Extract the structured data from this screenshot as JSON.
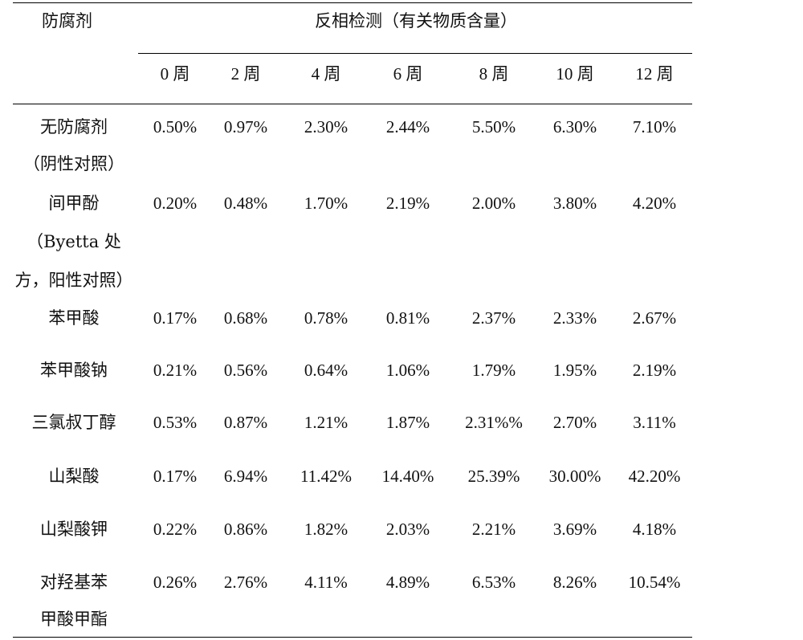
{
  "table": {
    "header": {
      "preservative": "防腐剂",
      "group": "反相检测（有关物质含量）",
      "weeks": [
        "0 周",
        "2 周",
        "4 周",
        "6 周",
        "8 周",
        "10 周",
        "12 周"
      ]
    },
    "rows": [
      {
        "name_lines": [
          "无防腐剂",
          "（阴性对照）"
        ],
        "values": [
          "0.50%",
          "0.97%",
          "2.30%",
          "2.44%",
          "5.50%",
          "6.30%",
          "7.10%"
        ]
      },
      {
        "name_lines": [
          "间甲酚",
          "（Byetta 处",
          "方，阳性对照）"
        ],
        "values": [
          "0.20%",
          "0.48%",
          "1.70%",
          "2.19%",
          "2.00%",
          "3.80%",
          "4.20%"
        ]
      },
      {
        "name_lines": [
          "苯甲酸"
        ],
        "values": [
          "0.17%",
          "0.68%",
          "0.78%",
          "0.81%",
          "2.37%",
          "2.33%",
          "2.67%"
        ]
      },
      {
        "name_lines": [
          "苯甲酸钠"
        ],
        "values": [
          "0.21%",
          "0.56%",
          "0.64%",
          "1.06%",
          "1.79%",
          "1.95%",
          "2.19%"
        ]
      },
      {
        "name_lines": [
          "三氯叔丁醇"
        ],
        "values": [
          "0.53%",
          "0.87%",
          "1.21%",
          "1.87%",
          "2.31%%",
          "2.70%",
          "3.11%"
        ]
      },
      {
        "name_lines": [
          "山梨酸"
        ],
        "values": [
          "0.17%",
          "6.94%",
          "11.42%",
          "14.40%",
          "25.39%",
          "30.00%",
          "42.20%"
        ]
      },
      {
        "name_lines": [
          "山梨酸钾"
        ],
        "values": [
          "0.22%",
          "0.86%",
          "1.82%",
          "2.03%",
          "2.21%",
          "3.69%",
          "4.18%"
        ]
      },
      {
        "name_lines": [
          "对羟基苯",
          "甲酸甲酯"
        ],
        "values": [
          "0.26%",
          "2.76%",
          "4.11%",
          "4.89%",
          "6.53%",
          "8.26%",
          "10.54%"
        ]
      }
    ]
  }
}
